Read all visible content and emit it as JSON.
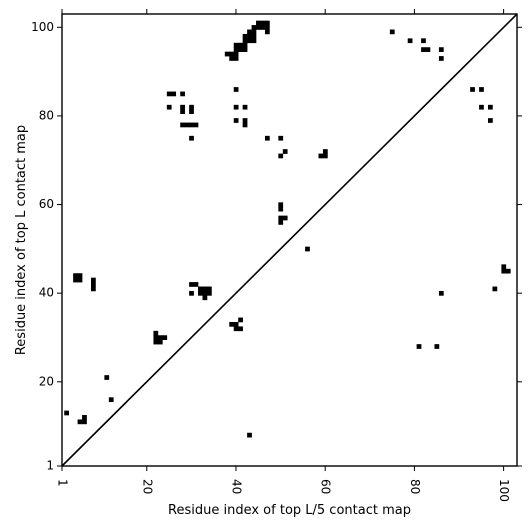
{
  "chart_data": {
    "type": "scatter",
    "title": "",
    "xlabel": "Residue index of top L/5 contact map",
    "ylabel": "Residue index of top L contact map",
    "xlim": [
      1,
      103
    ],
    "ylim": [
      1,
      103
    ],
    "x_ticks": [
      1,
      20,
      40,
      60,
      80,
      100
    ],
    "y_ticks": [
      1,
      20,
      40,
      60,
      80,
      100
    ],
    "x_tick_rotation_deg": -90,
    "grid": false,
    "legend": "none",
    "diagonal_line": {
      "from": [
        1,
        1
      ],
      "to": [
        103,
        103
      ]
    },
    "marker_color": "#000000",
    "marker_shape": "square",
    "series": [
      {
        "comment_region": "upper-left triangle (top L map)",
        "points": [
          [
            45,
            101
          ],
          [
            46,
            101
          ],
          [
            47,
            101
          ],
          [
            44,
            100
          ],
          [
            45,
            100
          ],
          [
            46,
            100
          ],
          [
            47,
            100
          ],
          [
            43,
            99
          ],
          [
            44,
            99
          ],
          [
            47,
            99
          ],
          [
            42,
            98
          ],
          [
            43,
            98
          ],
          [
            44,
            98
          ],
          [
            42,
            97
          ],
          [
            43,
            97
          ],
          [
            44,
            97
          ],
          [
            40,
            96
          ],
          [
            41,
            96
          ],
          [
            42,
            96
          ],
          [
            40,
            95
          ],
          [
            41,
            95
          ],
          [
            42,
            95
          ],
          [
            38,
            94
          ],
          [
            39,
            94
          ],
          [
            40,
            94
          ],
          [
            39,
            93
          ],
          [
            40,
            93
          ],
          [
            25,
            85
          ],
          [
            26,
            85
          ],
          [
            28,
            85
          ],
          [
            40,
            86
          ],
          [
            25,
            82
          ],
          [
            28,
            82
          ],
          [
            30,
            82
          ],
          [
            40,
            82
          ],
          [
            42,
            82
          ],
          [
            28,
            81
          ],
          [
            30,
            81
          ],
          [
            40,
            79
          ],
          [
            42,
            79
          ],
          [
            28,
            78
          ],
          [
            29,
            78
          ],
          [
            30,
            78
          ],
          [
            31,
            78
          ],
          [
            42,
            78
          ],
          [
            30,
            75
          ],
          [
            47,
            75
          ],
          [
            50,
            75
          ],
          [
            51,
            72
          ],
          [
            50,
            71
          ],
          [
            60,
            72
          ],
          [
            59,
            71
          ],
          [
            60,
            71
          ],
          [
            50,
            60
          ],
          [
            50,
            59
          ],
          [
            50,
            57
          ],
          [
            51,
            57
          ],
          [
            50,
            56
          ],
          [
            56,
            50
          ],
          [
            4,
            44
          ],
          [
            5,
            44
          ],
          [
            4,
            43
          ],
          [
            5,
            43
          ],
          [
            8,
            43
          ],
          [
            8,
            42
          ],
          [
            8,
            41
          ],
          [
            30,
            42
          ],
          [
            31,
            42
          ],
          [
            32,
            41
          ],
          [
            33,
            41
          ],
          [
            34,
            41
          ],
          [
            30,
            40
          ],
          [
            32,
            40
          ],
          [
            33,
            40
          ],
          [
            34,
            40
          ],
          [
            33,
            39
          ],
          [
            39,
            33
          ],
          [
            40,
            33
          ],
          [
            41,
            34
          ],
          [
            40,
            32
          ],
          [
            41,
            32
          ],
          [
            22,
            31
          ],
          [
            22,
            30
          ],
          [
            23,
            30
          ],
          [
            24,
            30
          ],
          [
            22,
            29
          ],
          [
            23,
            29
          ],
          [
            11,
            21
          ],
          [
            2,
            13
          ],
          [
            6,
            12
          ],
          [
            6,
            11
          ],
          [
            5,
            11
          ],
          [
            12,
            16
          ]
        ]
      },
      {
        "comment_region": "lower-right triangle (top L/5 map)",
        "points": [
          [
            75,
            99
          ],
          [
            79,
            97
          ],
          [
            82,
            97
          ],
          [
            82,
            95
          ],
          [
            83,
            95
          ],
          [
            86,
            95
          ],
          [
            86,
            93
          ],
          [
            93,
            86
          ],
          [
            95,
            86
          ],
          [
            95,
            82
          ],
          [
            97,
            82
          ],
          [
            97,
            79
          ],
          [
            100,
            46
          ],
          [
            100,
            45
          ],
          [
            101,
            45
          ],
          [
            98,
            41
          ],
          [
            86,
            40
          ],
          [
            81,
            28
          ],
          [
            85,
            28
          ],
          [
            43,
            8
          ]
        ]
      }
    ]
  }
}
